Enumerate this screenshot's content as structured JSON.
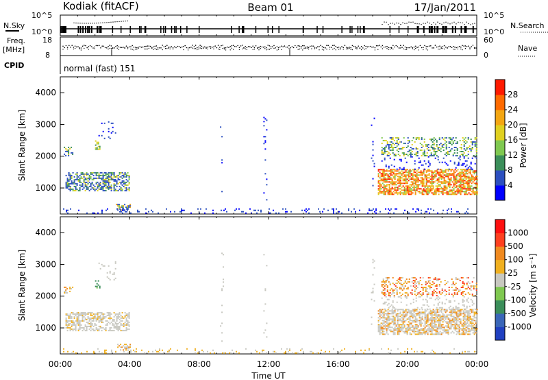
{
  "header": {
    "station": "Kodiak (fitACF)",
    "beam": "Beam 01",
    "date": "17/Jan/2011"
  },
  "side_labels": {
    "nsky": "N.Sky",
    "nsearch": "N.Search",
    "freq": "Freq.",
    "freq_unit": "[MHz]",
    "nave": "Nave",
    "cpid": "CPID",
    "cpid_value": "normal (fast) 151"
  },
  "chart_data": [
    {
      "type": "line",
      "name_panel": "noise",
      "left_label": "N.Sky",
      "right_label": "N.Search",
      "y_ticks_left": [
        "10^5",
        "10^0"
      ],
      "y_ticks_right": [
        "10^5",
        "10^0"
      ]
    },
    {
      "type": "scatter",
      "name_panel": "frequency",
      "left_label": "Freq. [MHz]",
      "right_label": "Nave",
      "y_ticks_left": [
        "18",
        "8"
      ],
      "y_ticks_right": [
        "60",
        "0"
      ]
    },
    {
      "type": "heatmap",
      "name_panel": "power",
      "ylabel": "Slant Range [km]",
      "y_ticks": [
        "4000",
        "3000",
        "2000",
        "1000"
      ],
      "ylim": [
        180,
        4500
      ],
      "colorbar_label": "Power [dB]",
      "colorbar_ticks": [
        "28",
        "24",
        "20",
        "16",
        "12",
        "8",
        "4"
      ],
      "colors": [
        "#0000ff",
        "#2c4fbf",
        "#3b8e5a",
        "#7fc850",
        "#e0d020",
        "#f3a612",
        "#ff6a00",
        "#ff1a00"
      ]
    },
    {
      "type": "heatmap",
      "name_panel": "velocity",
      "ylabel": "Slant Range [km]",
      "y_ticks": [
        "4000",
        "3000",
        "2000",
        "1000"
      ],
      "ylim": [
        180,
        4500
      ],
      "colorbar_label": "Velocity [m s⁻¹]",
      "colorbar_ticks": [
        "1000",
        "500",
        "100",
        "25",
        "-25",
        "-100",
        "-500",
        "-1000"
      ],
      "colors": [
        "#2040c0",
        "#3a66b8",
        "#3b8e5a",
        "#7fc850",
        "#c8c8c0",
        "#f0b020",
        "#f08a20",
        "#ff4020",
        "#ff1010"
      ]
    }
  ],
  "x_axis": {
    "label": "Time UT",
    "ticks": [
      "00:00",
      "04:00",
      "08:00",
      "12:00",
      "16:00",
      "20:00",
      "00:00"
    ]
  }
}
